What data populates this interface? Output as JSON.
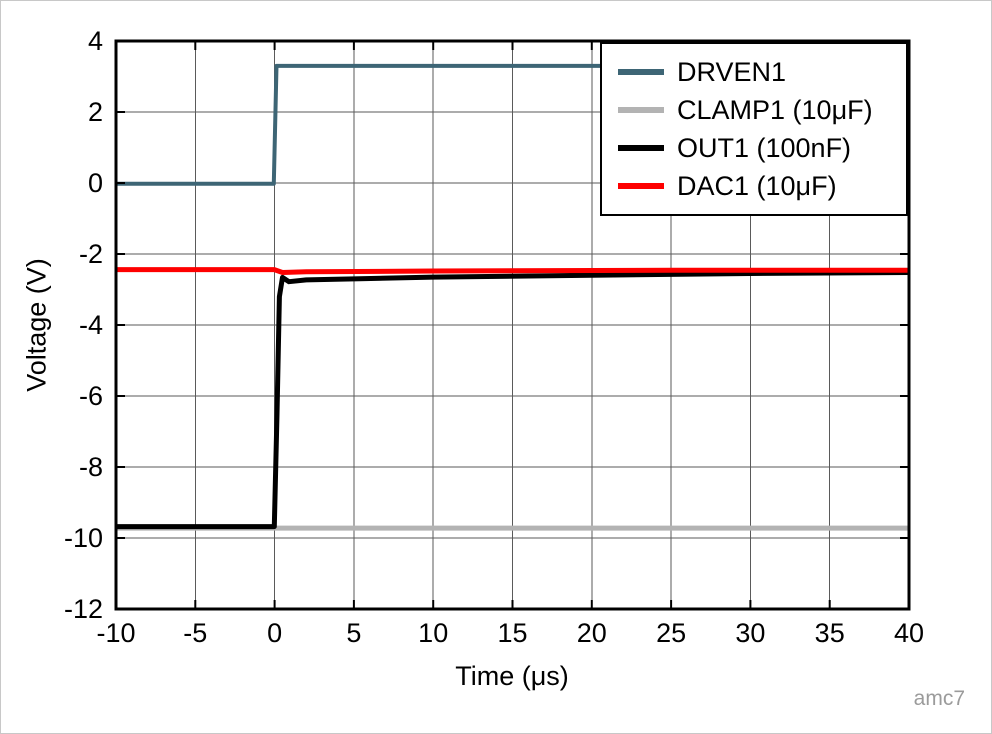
{
  "watermark": "amc7",
  "chart_data": {
    "type": "line",
    "title": "",
    "xlabel": "Time (μs)",
    "ylabel": "Voltage (V)",
    "xlim": [
      -10,
      40
    ],
    "ylim": [
      -12,
      4
    ],
    "xticks": [
      -10,
      -5,
      0,
      5,
      10,
      15,
      20,
      25,
      30,
      35,
      40
    ],
    "yticks": [
      4,
      2,
      0,
      -2,
      -4,
      -6,
      -8,
      -10,
      -12
    ],
    "grid": true,
    "legend_position": "top-right",
    "series": [
      {
        "name": "DRVEN1",
        "color": "#3d6575",
        "width": 4,
        "points": [
          [
            -10,
            -0.02
          ],
          [
            -0.05,
            -0.02
          ],
          [
            0.12,
            3.3
          ],
          [
            40,
            3.3
          ]
        ]
      },
      {
        "name": "CLAMP1 (10μF)",
        "color": "#b3b3b3",
        "width": 5,
        "points": [
          [
            -10,
            -9.72
          ],
          [
            40,
            -9.72
          ]
        ]
      },
      {
        "name": "OUT1 (100nF)",
        "color": "#000000",
        "width": 5,
        "points": [
          [
            -10,
            -9.68
          ],
          [
            -0.02,
            -9.68
          ],
          [
            0.15,
            -6.5
          ],
          [
            0.3,
            -3.2
          ],
          [
            0.5,
            -2.66
          ],
          [
            0.9,
            -2.78
          ],
          [
            2,
            -2.73
          ],
          [
            5,
            -2.7
          ],
          [
            10,
            -2.65
          ],
          [
            20,
            -2.6
          ],
          [
            30,
            -2.55
          ],
          [
            40,
            -2.52
          ]
        ]
      },
      {
        "name": "DAC1 (10μF)",
        "color": "#fe0000",
        "width": 5,
        "points": [
          [
            -10,
            -2.44
          ],
          [
            -0.02,
            -2.44
          ],
          [
            0.5,
            -2.52
          ],
          [
            2,
            -2.5
          ],
          [
            10,
            -2.48
          ],
          [
            25,
            -2.46
          ],
          [
            40,
            -2.46
          ]
        ]
      }
    ]
  }
}
